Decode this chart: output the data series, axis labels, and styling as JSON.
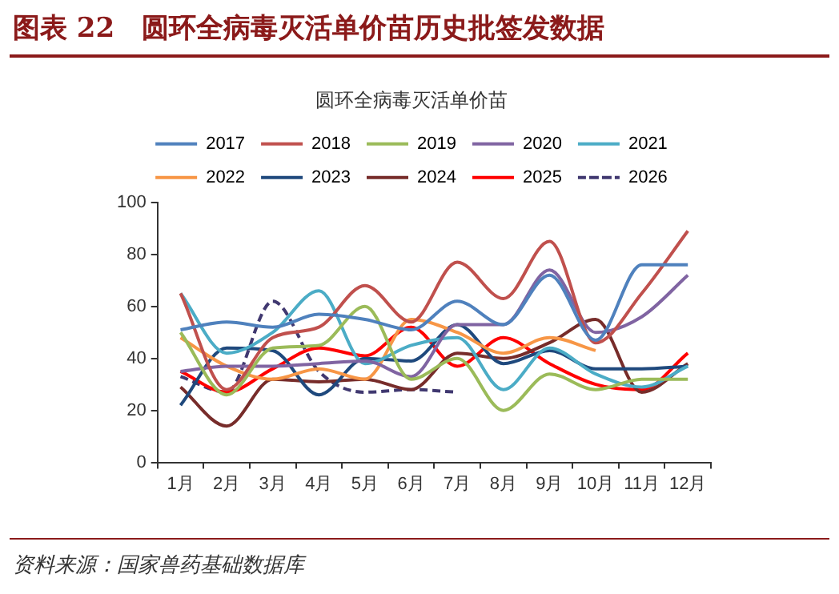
{
  "chart_data": {
    "type": "line",
    "title": "图表 22　圆环全病毒灭活单价苗历史批签发数据",
    "subtitle": "圆环全病毒灭活单价苗",
    "categories": [
      "1月",
      "2月",
      "3月",
      "4月",
      "5月",
      "6月",
      "7月",
      "8月",
      "9月",
      "10月",
      "11月",
      "12月"
    ],
    "ylim": [
      0,
      100
    ],
    "yticks": [
      0,
      20,
      40,
      60,
      80,
      100
    ],
    "grid": false,
    "legend": "top",
    "marker": "none",
    "line_style": "solid",
    "series": [
      {
        "name": "2017",
        "color": "#4f81bd",
        "values": [
          51,
          54,
          52,
          57,
          55,
          51,
          62,
          53,
          72,
          47,
          76,
          76
        ]
      },
      {
        "name": "2018",
        "color": "#c0504d",
        "values": [
          65,
          28,
          48,
          52,
          68,
          54,
          77,
          63,
          85,
          46,
          65,
          89
        ]
      },
      {
        "name": "2019",
        "color": "#9bbb59",
        "values": [
          50,
          26,
          44,
          45,
          60,
          32,
          40,
          20,
          34,
          28,
          32,
          32
        ]
      },
      {
        "name": "2020",
        "color": "#8064a2",
        "values": [
          35,
          37,
          37,
          38,
          39,
          33,
          53,
          53,
          74,
          50,
          56,
          72
        ]
      },
      {
        "name": "2021",
        "color": "#4bacc6",
        "values": [
          65,
          42,
          50,
          66,
          38,
          45,
          48,
          28,
          44,
          34,
          29,
          37
        ]
      },
      {
        "name": "2022",
        "color": "#f79646",
        "values": [
          48,
          37,
          32,
          36,
          32,
          55,
          50,
          42,
          48,
          43,
          null,
          null
        ]
      },
      {
        "name": "2023",
        "color": "#1f497d",
        "values": [
          22,
          44,
          43,
          26,
          40,
          39,
          53,
          38,
          43,
          36,
          36,
          37
        ]
      },
      {
        "name": "2024",
        "color": "#772c2a",
        "values": [
          29,
          14,
          32,
          31,
          32,
          28,
          42,
          40,
          46,
          55,
          27,
          38
        ]
      },
      {
        "name": "2025",
        "color": "#ff0000",
        "values": [
          35,
          27,
          36,
          44,
          41,
          52,
          37,
          48,
          38,
          30,
          28,
          42
        ]
      },
      {
        "name": "2026",
        "color": "#403870",
        "line_style": "dashed",
        "values": [
          33,
          27,
          62,
          35,
          27,
          28,
          27,
          null,
          null,
          null,
          null,
          null
        ]
      }
    ],
    "annotations": [
      "资料来源：国家兽药基础数据库"
    ]
  }
}
